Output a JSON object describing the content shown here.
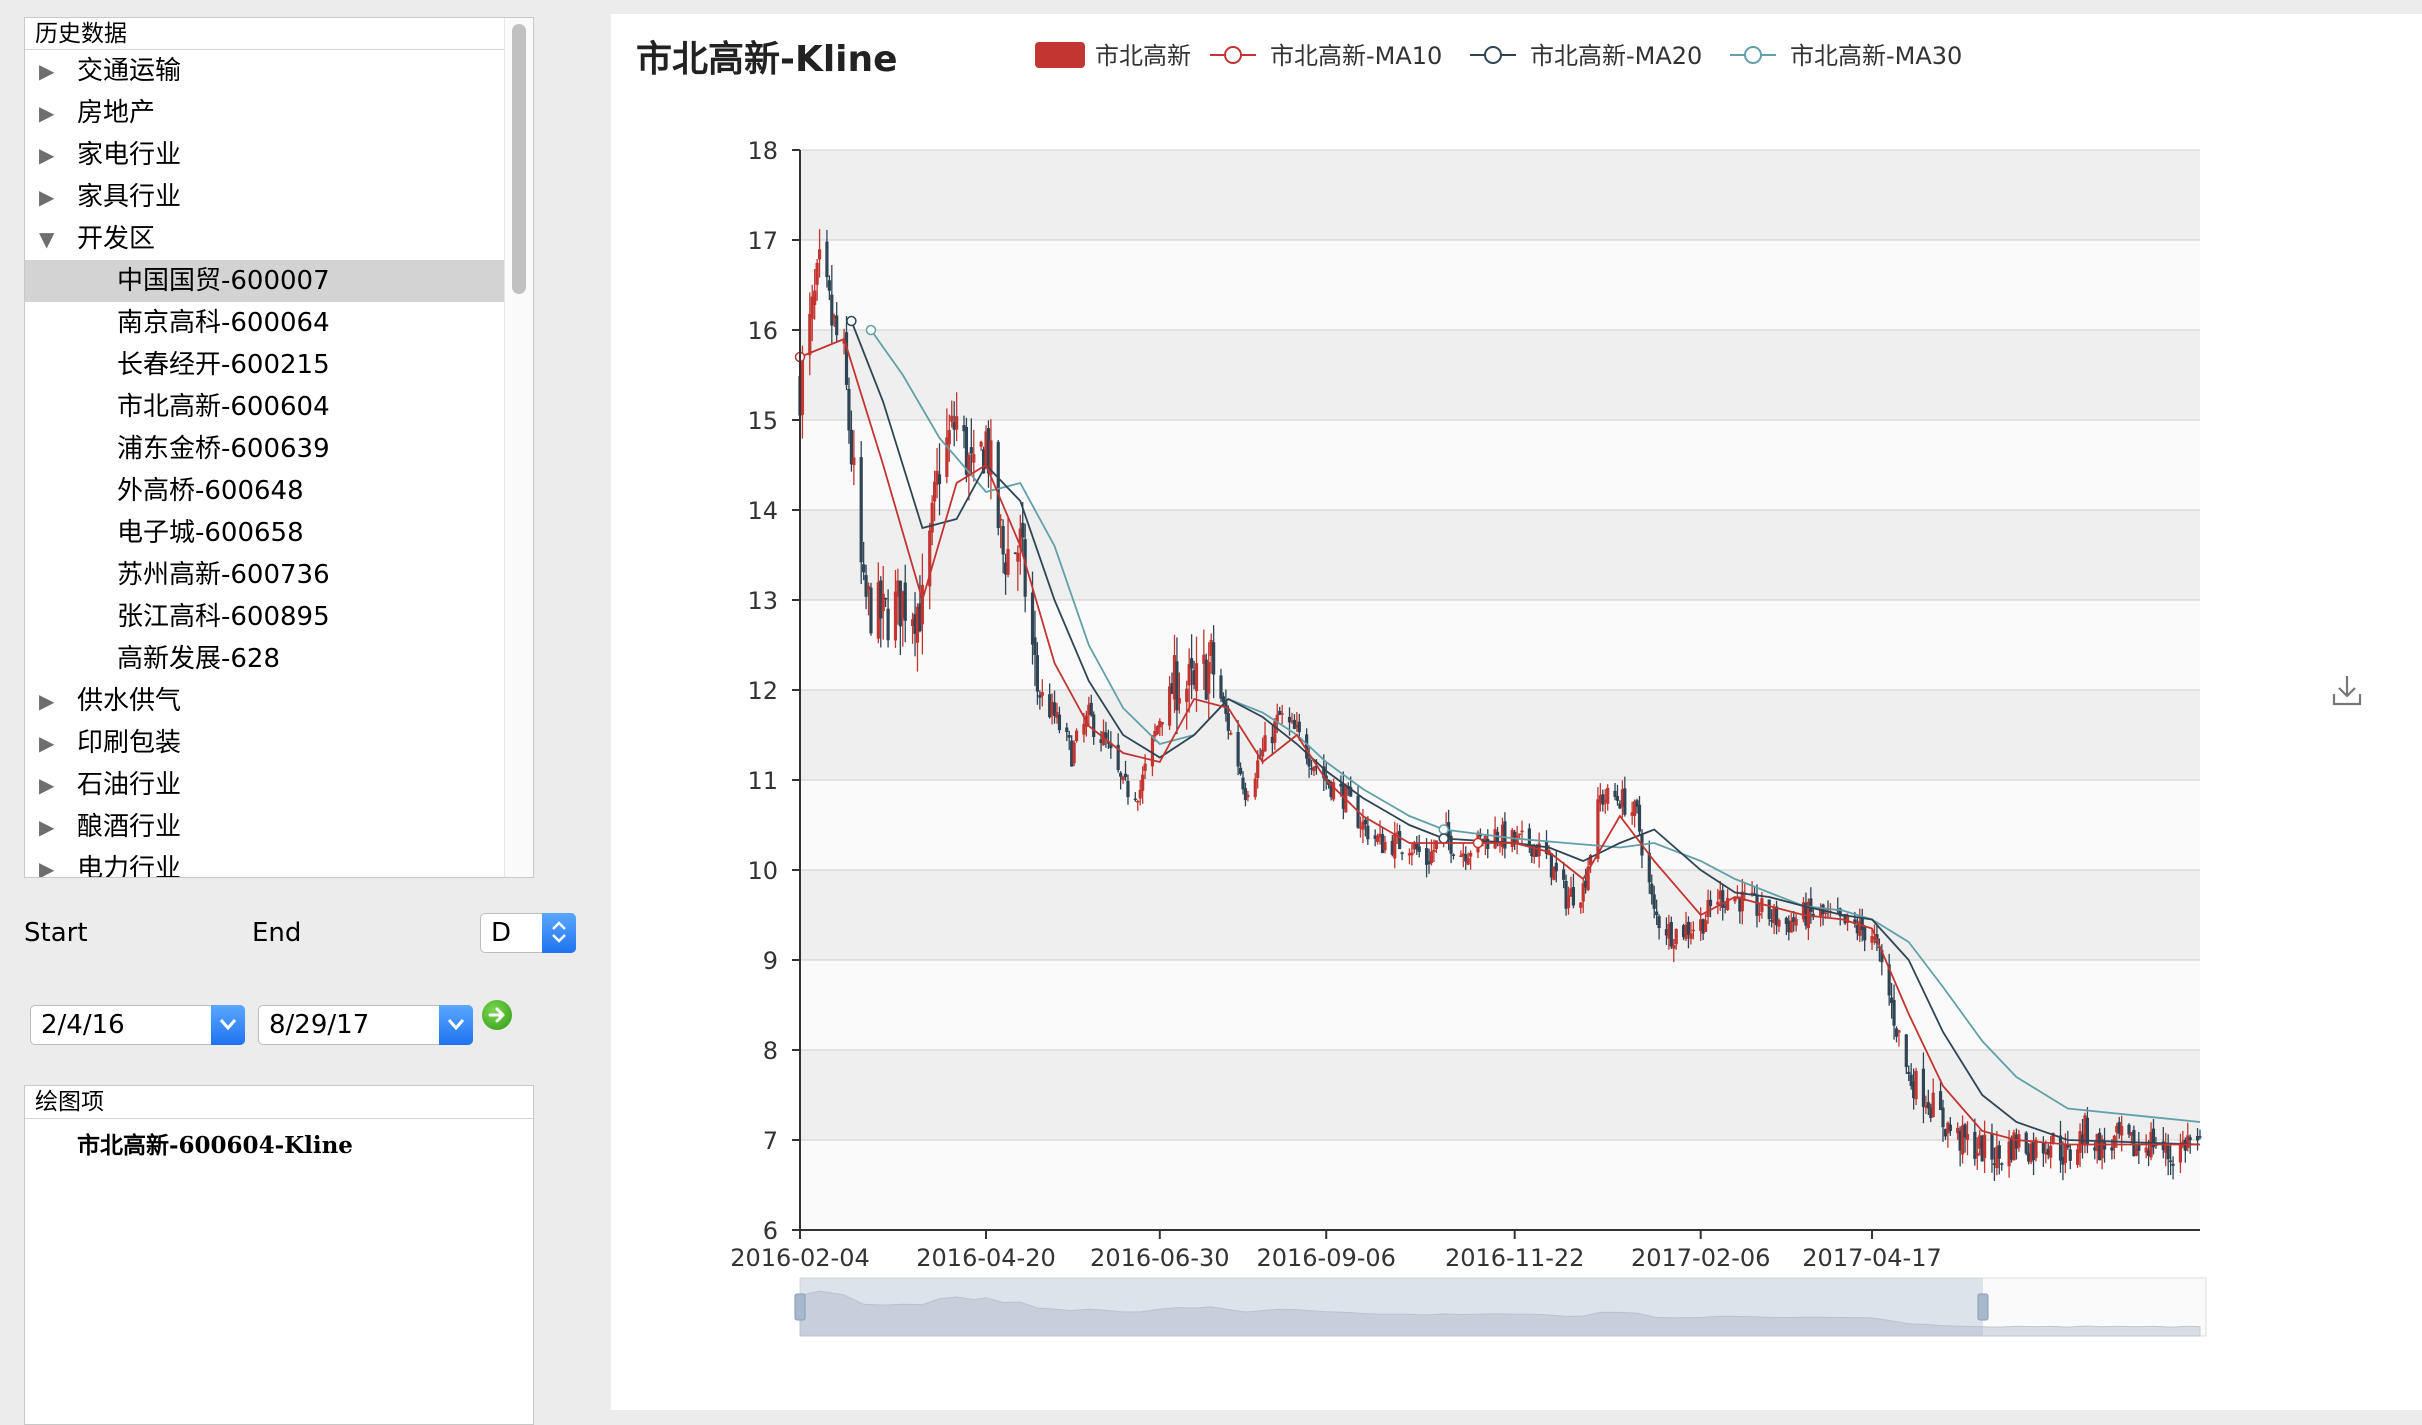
{
  "tree": {
    "header": "历史数据",
    "items": [
      {
        "label": "交通运输",
        "arrow": "▶",
        "level": 0,
        "selected": false
      },
      {
        "label": "房地产",
        "arrow": "▶",
        "level": 0,
        "selected": false
      },
      {
        "label": "家电行业",
        "arrow": "▶",
        "level": 0,
        "selected": false
      },
      {
        "label": "家具行业",
        "arrow": "▶",
        "level": 0,
        "selected": false
      },
      {
        "label": "开发区",
        "arrow": "▼",
        "level": 0,
        "selected": false
      },
      {
        "label": "中国国贸-600007",
        "arrow": "",
        "level": 1,
        "selected": true
      },
      {
        "label": "南京高科-600064",
        "arrow": "",
        "level": 1,
        "selected": false
      },
      {
        "label": "长春经开-600215",
        "arrow": "",
        "level": 1,
        "selected": false
      },
      {
        "label": "市北高新-600604",
        "arrow": "",
        "level": 1,
        "selected": false
      },
      {
        "label": "浦东金桥-600639",
        "arrow": "",
        "level": 1,
        "selected": false
      },
      {
        "label": "外高桥-600648",
        "arrow": "",
        "level": 1,
        "selected": false
      },
      {
        "label": "电子城-600658",
        "arrow": "",
        "level": 1,
        "selected": false
      },
      {
        "label": "苏州高新-600736",
        "arrow": "",
        "level": 1,
        "selected": false
      },
      {
        "label": "张江高科-600895",
        "arrow": "",
        "level": 1,
        "selected": false
      },
      {
        "label": "高新发展-628",
        "arrow": "",
        "level": 1,
        "selected": false
      },
      {
        "label": "供水供气",
        "arrow": "▶",
        "level": 0,
        "selected": false
      },
      {
        "label": "印刷包装",
        "arrow": "▶",
        "level": 0,
        "selected": false
      },
      {
        "label": "石油行业",
        "arrow": "▶",
        "level": 0,
        "selected": false
      },
      {
        "label": "酿酒行业",
        "arrow": "▶",
        "level": 0,
        "selected": false
      },
      {
        "label": "电力行业",
        "arrow": "▶",
        "level": 0,
        "selected": false
      }
    ]
  },
  "controls": {
    "start_label": "Start",
    "end_label": "End",
    "period": "D",
    "start_date": "2/4/16",
    "end_date": "8/29/17"
  },
  "items_panel": {
    "header": "绘图项",
    "item": "市北高新-600604-Kline"
  },
  "colors": {
    "up": "#c23531",
    "down": "#2f4554",
    "ma10": "#c23531",
    "ma20": "#2f4554",
    "ma30": "#61a0a8"
  },
  "chart_data": {
    "type": "candlestick",
    "title": "市北高新-Kline",
    "legend": [
      "市北高新",
      "市北高新-MA10",
      "市北高新-MA20",
      "市北高新-MA30"
    ],
    "x_tick_labels": [
      "2016-02-04",
      "2016-04-20",
      "2016-06-30",
      "2016-09-06",
      "2016-11-22",
      "2017-02-06",
      "2017-04-17"
    ],
    "x_range": [
      "2016-02-04",
      "2017-08-29"
    ],
    "ylim": [
      6,
      18
    ],
    "y_ticks": [
      6,
      7,
      8,
      9,
      10,
      11,
      12,
      13,
      14,
      15,
      16,
      17,
      18
    ],
    "grid": true,
    "legend_position": "top",
    "close_path": [
      [
        "2016-02-04",
        15.4
      ],
      [
        "2016-02-12",
        16.6
      ],
      [
        "2016-02-22",
        15.6
      ],
      [
        "2016-03-01",
        13.0
      ],
      [
        "2016-03-09",
        12.8
      ],
      [
        "2016-03-17",
        13.0
      ],
      [
        "2016-03-25",
        12.9
      ],
      [
        "2016-04-01",
        14.5
      ],
      [
        "2016-04-08",
        15.0
      ],
      [
        "2016-04-15",
        14.3
      ],
      [
        "2016-04-20",
        14.8
      ],
      [
        "2016-04-27",
        13.5
      ],
      [
        "2016-05-04",
        13.6
      ],
      [
        "2016-05-11",
        12.0
      ],
      [
        "2016-05-18",
        11.7
      ],
      [
        "2016-05-25",
        11.3
      ],
      [
        "2016-06-01",
        11.7
      ],
      [
        "2016-06-08",
        11.4
      ],
      [
        "2016-06-15",
        10.9
      ],
      [
        "2016-06-22",
        10.9
      ],
      [
        "2016-06-30",
        11.7
      ],
      [
        "2016-07-07",
        12.1
      ],
      [
        "2016-07-14",
        12.0
      ],
      [
        "2016-07-21",
        12.3
      ],
      [
        "2016-07-28",
        11.6
      ],
      [
        "2016-08-04",
        10.9
      ],
      [
        "2016-08-11",
        11.3
      ],
      [
        "2016-08-18",
        11.7
      ],
      [
        "2016-08-25",
        11.5
      ],
      [
        "2016-09-01",
        11.2
      ],
      [
        "2016-09-06",
        11.0
      ],
      [
        "2016-09-14",
        10.8
      ],
      [
        "2016-09-21",
        10.5
      ],
      [
        "2016-09-28",
        10.3
      ],
      [
        "2016-10-10",
        10.3
      ],
      [
        "2016-10-17",
        10.1
      ],
      [
        "2016-10-24",
        10.4
      ],
      [
        "2016-10-31",
        10.2
      ],
      [
        "2016-11-07",
        10.3
      ],
      [
        "2016-11-14",
        10.4
      ],
      [
        "2016-11-22",
        10.3
      ],
      [
        "2016-11-29",
        10.3
      ],
      [
        "2016-12-06",
        10.1
      ],
      [
        "2016-12-13",
        9.7
      ],
      [
        "2016-12-20",
        9.8
      ],
      [
        "2016-12-27",
        10.8
      ],
      [
        "2017-01-04",
        10.8
      ],
      [
        "2017-01-11",
        10.6
      ],
      [
        "2017-01-18",
        9.5
      ],
      [
        "2017-01-25",
        9.3
      ],
      [
        "2017-02-06",
        9.4
      ],
      [
        "2017-02-13",
        9.7
      ],
      [
        "2017-02-20",
        9.7
      ],
      [
        "2017-02-27",
        9.6
      ],
      [
        "2017-03-06",
        9.5
      ],
      [
        "2017-03-13",
        9.4
      ],
      [
        "2017-03-20",
        9.5
      ],
      [
        "2017-03-27",
        9.5
      ],
      [
        "2017-04-05",
        9.4
      ],
      [
        "2017-04-17",
        9.3
      ],
      [
        "2017-04-24",
        8.6
      ],
      [
        "2017-05-02",
        7.7
      ],
      [
        "2017-05-09",
        7.5
      ],
      [
        "2017-05-16",
        7.2
      ],
      [
        "2017-05-23",
        7.0
      ],
      [
        "2017-06-01",
        6.9
      ],
      [
        "2017-06-08",
        6.8
      ],
      [
        "2017-06-15",
        7.0
      ],
      [
        "2017-06-22",
        6.9
      ],
      [
        "2017-06-29",
        7.0
      ],
      [
        "2017-07-06",
        6.8
      ],
      [
        "2017-07-13",
        7.1
      ],
      [
        "2017-07-20",
        6.9
      ],
      [
        "2017-07-27",
        7.0
      ],
      [
        "2017-08-03",
        6.9
      ],
      [
        "2017-08-10",
        7.0
      ],
      [
        "2017-08-17",
        6.8
      ],
      [
        "2017-08-24",
        7.0
      ],
      [
        "2017-08-29",
        6.9
      ]
    ],
    "ma10_path": [
      [
        "2016-02-04",
        15.7
      ],
      [
        "2016-02-22",
        15.9
      ],
      [
        "2016-03-09",
        14.5
      ],
      [
        "2016-03-25",
        13.0
      ],
      [
        "2016-04-08",
        14.3
      ],
      [
        "2016-04-20",
        14.5
      ],
      [
        "2016-05-04",
        13.6
      ],
      [
        "2016-05-18",
        12.3
      ],
      [
        "2016-06-01",
        11.6
      ],
      [
        "2016-06-15",
        11.3
      ],
      [
        "2016-06-30",
        11.2
      ],
      [
        "2016-07-14",
        11.9
      ],
      [
        "2016-07-28",
        11.8
      ],
      [
        "2016-08-11",
        11.2
      ],
      [
        "2016-08-25",
        11.5
      ],
      [
        "2016-09-06",
        11.0
      ],
      [
        "2016-09-21",
        10.6
      ],
      [
        "2016-10-10",
        10.3
      ],
      [
        "2016-10-24",
        10.3
      ],
      [
        "2016-11-07",
        10.3
      ],
      [
        "2016-11-22",
        10.3
      ],
      [
        "2016-12-06",
        10.2
      ],
      [
        "2016-12-20",
        9.9
      ],
      [
        "2017-01-04",
        10.6
      ],
      [
        "2017-01-18",
        10.1
      ],
      [
        "2017-02-06",
        9.5
      ],
      [
        "2017-02-20",
        9.7
      ],
      [
        "2017-03-06",
        9.6
      ],
      [
        "2017-03-20",
        9.5
      ],
      [
        "2017-04-05",
        9.45
      ],
      [
        "2017-04-17",
        9.35
      ],
      [
        "2017-05-02",
        8.4
      ],
      [
        "2017-05-16",
        7.6
      ],
      [
        "2017-06-01",
        7.1
      ],
      [
        "2017-06-15",
        7.0
      ],
      [
        "2017-07-06",
        6.95
      ],
      [
        "2017-07-27",
        6.95
      ],
      [
        "2017-08-29",
        6.95
      ]
    ],
    "ma20_path": [
      [
        "2016-02-25",
        16.1
      ],
      [
        "2016-03-09",
        15.2
      ],
      [
        "2016-03-25",
        13.8
      ],
      [
        "2016-04-08",
        13.9
      ],
      [
        "2016-04-20",
        14.5
      ],
      [
        "2016-05-04",
        14.1
      ],
      [
        "2016-05-18",
        13.0
      ],
      [
        "2016-06-01",
        12.1
      ],
      [
        "2016-06-15",
        11.5
      ],
      [
        "2016-06-30",
        11.25
      ],
      [
        "2016-07-14",
        11.5
      ],
      [
        "2016-07-28",
        11.9
      ],
      [
        "2016-08-11",
        11.7
      ],
      [
        "2016-08-25",
        11.4
      ],
      [
        "2016-09-06",
        11.1
      ],
      [
        "2016-09-21",
        10.8
      ],
      [
        "2016-10-10",
        10.5
      ],
      [
        "2016-10-24",
        10.35
      ],
      [
        "2016-11-22",
        10.3
      ],
      [
        "2016-12-06",
        10.25
      ],
      [
        "2016-12-20",
        10.1
      ],
      [
        "2017-01-04",
        10.3
      ],
      [
        "2017-01-18",
        10.45
      ],
      [
        "2017-02-06",
        10.0
      ],
      [
        "2017-02-20",
        9.75
      ],
      [
        "2017-03-06",
        9.7
      ],
      [
        "2017-03-20",
        9.6
      ],
      [
        "2017-04-05",
        9.5
      ],
      [
        "2017-04-17",
        9.45
      ],
      [
        "2017-05-02",
        9.0
      ],
      [
        "2017-05-16",
        8.2
      ],
      [
        "2017-06-01",
        7.5
      ],
      [
        "2017-06-15",
        7.2
      ],
      [
        "2017-07-06",
        7.0
      ],
      [
        "2017-08-29",
        6.95
      ]
    ],
    "ma30_path": [
      [
        "2016-03-04",
        16.0
      ],
      [
        "2016-03-17",
        15.5
      ],
      [
        "2016-04-01",
        14.8
      ],
      [
        "2016-04-20",
        14.2
      ],
      [
        "2016-05-04",
        14.3
      ],
      [
        "2016-05-18",
        13.6
      ],
      [
        "2016-06-01",
        12.5
      ],
      [
        "2016-06-15",
        11.8
      ],
      [
        "2016-06-30",
        11.4
      ],
      [
        "2016-07-14",
        11.5
      ],
      [
        "2016-07-28",
        11.9
      ],
      [
        "2016-08-11",
        11.75
      ],
      [
        "2016-08-25",
        11.5
      ],
      [
        "2016-09-06",
        11.2
      ],
      [
        "2016-09-21",
        10.9
      ],
      [
        "2016-10-10",
        10.6
      ],
      [
        "2016-10-24",
        10.45
      ],
      [
        "2016-11-22",
        10.35
      ],
      [
        "2016-12-13",
        10.3
      ],
      [
        "2017-01-04",
        10.25
      ],
      [
        "2017-01-18",
        10.3
      ],
      [
        "2017-02-06",
        10.1
      ],
      [
        "2017-02-20",
        9.9
      ],
      [
        "2017-03-06",
        9.75
      ],
      [
        "2017-03-20",
        9.6
      ],
      [
        "2017-04-05",
        9.55
      ],
      [
        "2017-04-17",
        9.45
      ],
      [
        "2017-05-02",
        9.2
      ],
      [
        "2017-05-16",
        8.7
      ],
      [
        "2017-06-01",
        8.1
      ],
      [
        "2017-06-15",
        7.7
      ],
      [
        "2017-07-06",
        7.35
      ],
      [
        "2017-08-29",
        7.2
      ]
    ],
    "selected_range": [
      "2016-02-04",
      "2017-08-29"
    ]
  }
}
